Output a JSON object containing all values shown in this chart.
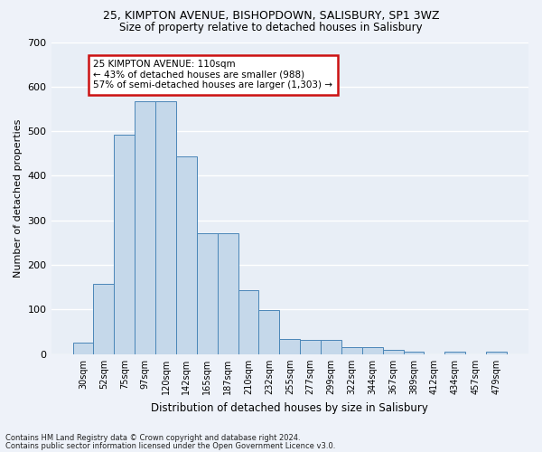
{
  "title1": "25, KIMPTON AVENUE, BISHOPDOWN, SALISBURY, SP1 3WZ",
  "title2": "Size of property relative to detached houses in Salisbury",
  "xlabel": "Distribution of detached houses by size in Salisbury",
  "ylabel": "Number of detached properties",
  "categories": [
    "30sqm",
    "52sqm",
    "75sqm",
    "97sqm",
    "120sqm",
    "142sqm",
    "165sqm",
    "187sqm",
    "210sqm",
    "232sqm",
    "255sqm",
    "277sqm",
    "299sqm",
    "322sqm",
    "344sqm",
    "367sqm",
    "389sqm",
    "412sqm",
    "434sqm",
    "457sqm",
    "479sqm"
  ],
  "bar_values": [
    25,
    157,
    492,
    567,
    568,
    443,
    272,
    272,
    144,
    98,
    35,
    32,
    32,
    15,
    15,
    10,
    6,
    0,
    5,
    0,
    6
  ],
  "bar_color": "#c5d8ea",
  "bar_edge_color": "#4a86b8",
  "fig_bg_color": "#eef2f9",
  "ax_bg_color": "#e8eef6",
  "grid_color": "#ffffff",
  "annotation_box_edge_color": "#cc1111",
  "annotation_line1": "25 KIMPTON AVENUE: 110sqm",
  "annotation_line2": "← 43% of detached houses are smaller (988)",
  "annotation_line3": "57% of semi-detached houses are larger (1,303) →",
  "ylim": [
    0,
    700
  ],
  "yticks": [
    0,
    100,
    200,
    300,
    400,
    500,
    600,
    700
  ],
  "footnote1": "Contains HM Land Registry data © Crown copyright and database right 2024.",
  "footnote2": "Contains public sector information licensed under the Open Government Licence v3.0."
}
